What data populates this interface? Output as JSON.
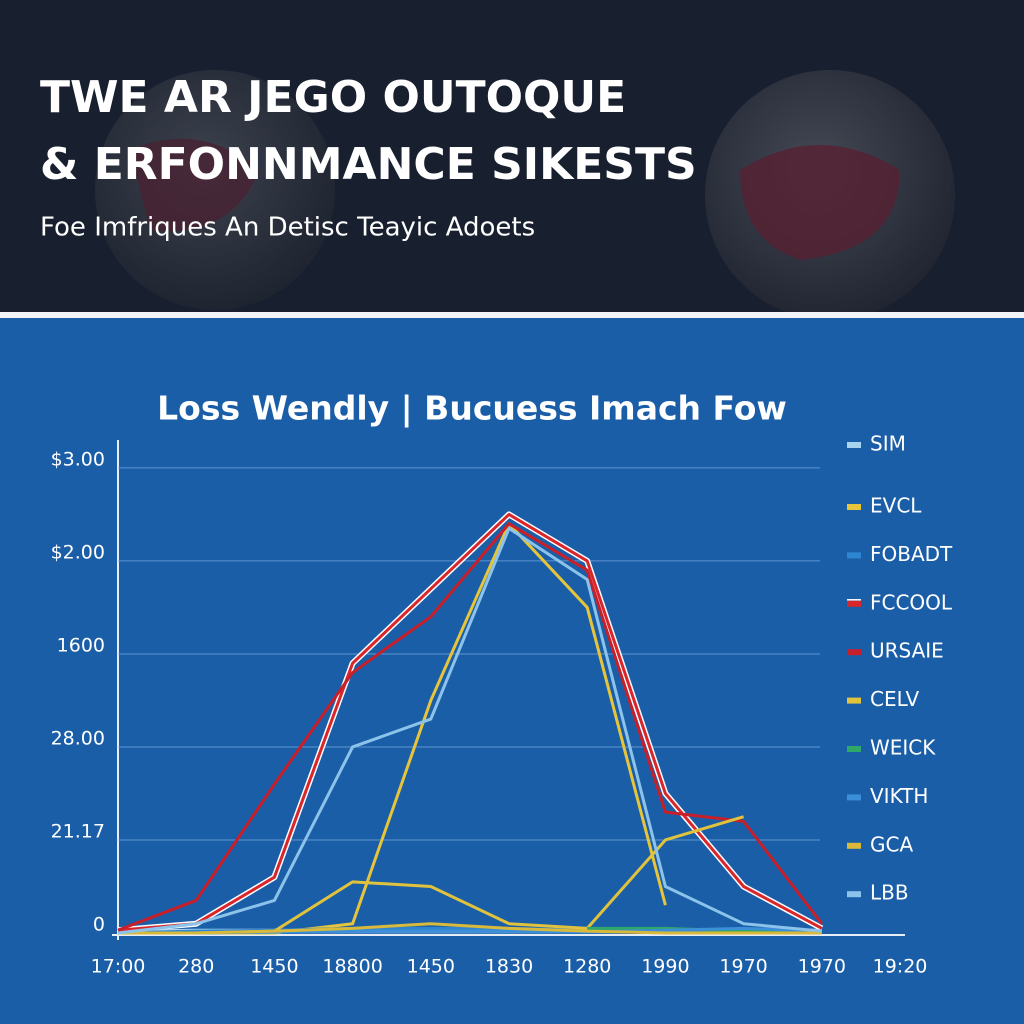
{
  "header": {
    "title_lines": [
      "TWE AR JEGO OUTOQUE",
      "& ERFONNMANCE SIKESTS"
    ],
    "subtitle": "Foe Imfriques An Detisc Teayic Adoets"
  },
  "chart_data": {
    "type": "line",
    "title": "Loss Wendly | Bucuess Imach Fow",
    "categories": [
      "17:00",
      "280",
      "1450",
      "18800",
      "1450",
      "1830",
      "1280",
      "1990",
      "1970",
      "1970",
      "19:20"
    ],
    "ylim": [
      0,
      5.3
    ],
    "yticks": [
      0,
      {
        "value": 1,
        "label": "21.17"
      },
      {
        "value": 2,
        "label": "28.00"
      },
      {
        "value": 3,
        "label": "1600"
      },
      {
        "value": 4,
        "label": "$2.00"
      },
      {
        "value": 5,
        "label": "$3.00"
      }
    ],
    "grid": true,
    "legend": "right",
    "series": [
      {
        "name": "SIM",
        "color": "#a9d4f0",
        "values": [
          0.02,
          0.03,
          0.03,
          0.04,
          0.04,
          0.03,
          0.03,
          0.03,
          0.03,
          0.03,
          null
        ]
      },
      {
        "name": "EVCL",
        "color": "#e6c53a",
        "values": [
          0,
          0,
          0,
          0.1,
          2.5,
          4.4,
          3.5,
          0.3,
          null,
          null,
          null
        ]
      },
      {
        "name": "FOBADT",
        "color": "#2f86d0",
        "values": [
          0,
          0.02,
          0.03,
          0.05,
          0.05,
          0.05,
          0.03,
          0.02,
          0.03,
          0.02,
          null
        ]
      },
      {
        "name": "FCCOOL",
        "color": "#d9262b",
        "outline": "#ffffff",
        "values": [
          0.03,
          0.1,
          0.6,
          2.9,
          3.7,
          4.5,
          4.0,
          1.5,
          0.5,
          0.05,
          null
        ]
      },
      {
        "name": "URSAIE",
        "color": "#c8202a",
        "values": [
          0.03,
          0.35,
          1.6,
          2.8,
          3.4,
          4.4,
          3.9,
          1.3,
          1.2,
          0.1,
          null
        ]
      },
      {
        "name": "CELV",
        "color": "#e0c23c",
        "values": [
          0,
          0,
          0.02,
          0.55,
          0.5,
          0.1,
          0.05,
          1.0,
          1.25,
          null,
          null
        ]
      },
      {
        "name": "WEICK",
        "color": "#2fa86a",
        "values": [
          null,
          null,
          null,
          null,
          null,
          null,
          0.05,
          0.05,
          0.02,
          0.01,
          null
        ]
      },
      {
        "name": "VIKTH",
        "color": "#3a8fd8",
        "values": [
          0,
          0,
          0.01,
          0.02,
          0.02,
          0.02,
          0.01,
          0.03,
          0.05,
          0.02,
          null
        ]
      },
      {
        "name": "GCA",
        "color": "#d8b93a",
        "values": [
          0,
          0,
          0.02,
          0.05,
          0.1,
          0.05,
          0.02,
          0,
          0,
          0,
          null
        ]
      },
      {
        "name": "LBB",
        "color": "#8cc3ea",
        "values": [
          0,
          0.1,
          0.35,
          2.0,
          2.3,
          4.35,
          3.8,
          0.5,
          0.1,
          0.02,
          null
        ]
      }
    ]
  }
}
